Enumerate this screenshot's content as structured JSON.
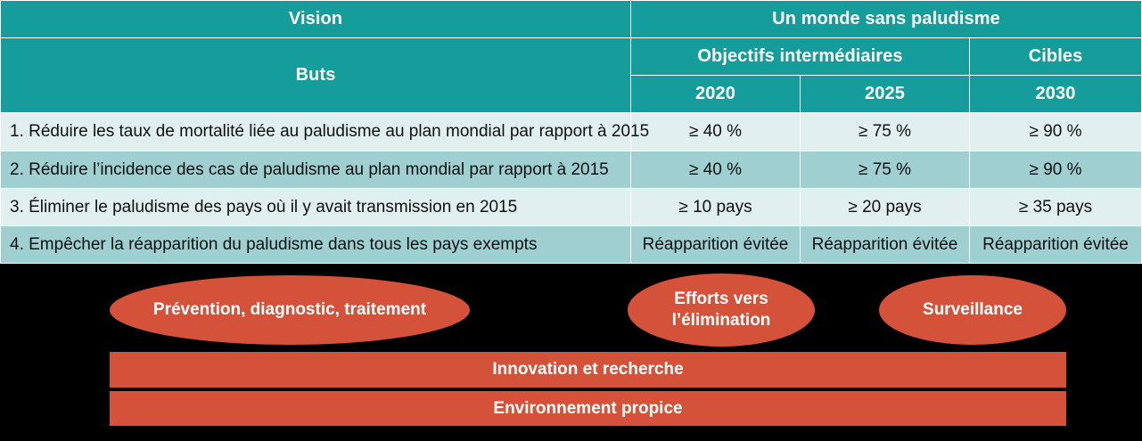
{
  "header": {
    "vision_label": "Vision",
    "vision_value": "Un monde sans paludisme",
    "goals_label": "Buts",
    "milestones_label": "Objectifs intermédiaires",
    "targets_label": "Cibles",
    "years": [
      "2020",
      "2025",
      "2030"
    ]
  },
  "rows": [
    {
      "goal": "1. Réduire les taux de mortalité liée au paludisme au plan mondial par rapport à 2015",
      "v2020": "≥ 40 %",
      "v2025": "≥ 75 %",
      "v2030": "≥ 90 %"
    },
    {
      "goal": "2. Réduire l’incidence des cas de paludisme au plan mondial par rapport à 2015",
      "v2020": "≥ 40 %",
      "v2025": "≥ 75 %",
      "v2030": "≥ 90 %"
    },
    {
      "goal": "3. Éliminer le paludisme des pays où il y avait transmission en 2015",
      "v2020": "≥ 10 pays",
      "v2025": "≥ 20 pays",
      "v2030": "≥ 35 pays"
    },
    {
      "goal": "4. Empêcher la réapparition du paludisme dans tous les pays exempts",
      "v2020": "Réapparition évitée",
      "v2025": "Réapparition évitée",
      "v2030": "Réapparition évitée"
    }
  ],
  "pillars": {
    "prevention": "Prévention, diagnostic, traitement",
    "elimination_line1": "Efforts vers",
    "elimination_line2": "l’élimination",
    "surveillance": "Surveillance"
  },
  "foundations": {
    "innovation": "Innovation et recherche",
    "environment": "Environnement propice"
  },
  "colors": {
    "header_teal": "#149d9a",
    "row_light": "#e1efef",
    "row_mid": "#9fcfd0",
    "orange": "#d4523a",
    "background": "#000000"
  }
}
